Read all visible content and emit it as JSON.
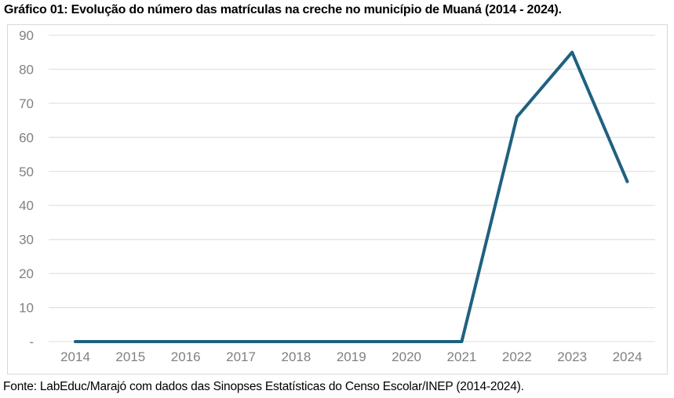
{
  "title": "Gráfico 01: Evolução do número das matrículas na creche no município de Muaná (2014 - 2024).",
  "source_note": "Fonte: LabEduc/Marajó com dados das Sinopses Estatísticas do Censo Escolar/INEP (2014-2024).",
  "chart_data": {
    "type": "line",
    "title": "Gráfico 01: Evolução do número das matrículas na creche no município de Muaná (2014 - 2024).",
    "categories": [
      "2014",
      "2015",
      "2016",
      "2017",
      "2018",
      "2019",
      "2020",
      "2021",
      "2022",
      "2023",
      "2024"
    ],
    "series": [
      {
        "name": "Matrículas na creche",
        "values": [
          0,
          0,
          0,
          0,
          0,
          0,
          0,
          0,
          66,
          85,
          47
        ]
      }
    ],
    "xlabel": "",
    "ylabel": "",
    "ylim": [
      0,
      90
    ],
    "ytick_interval": 10,
    "yticks": [
      {
        "value": 90,
        "label": "90"
      },
      {
        "value": 80,
        "label": "80"
      },
      {
        "value": 70,
        "label": "70"
      },
      {
        "value": 60,
        "label": "60"
      },
      {
        "value": 50,
        "label": "50"
      },
      {
        "value": 40,
        "label": "40"
      },
      {
        "value": 30,
        "label": "30"
      },
      {
        "value": 20,
        "label": "20"
      },
      {
        "value": 10,
        "label": "10"
      },
      {
        "value": 0,
        "label": "-"
      }
    ],
    "grid": true,
    "legend": false,
    "colors": {
      "line": "#1f6180",
      "gridline": "#e3e3e3",
      "axis_text": "#808080",
      "plot_border": "#d8d8d8"
    }
  }
}
